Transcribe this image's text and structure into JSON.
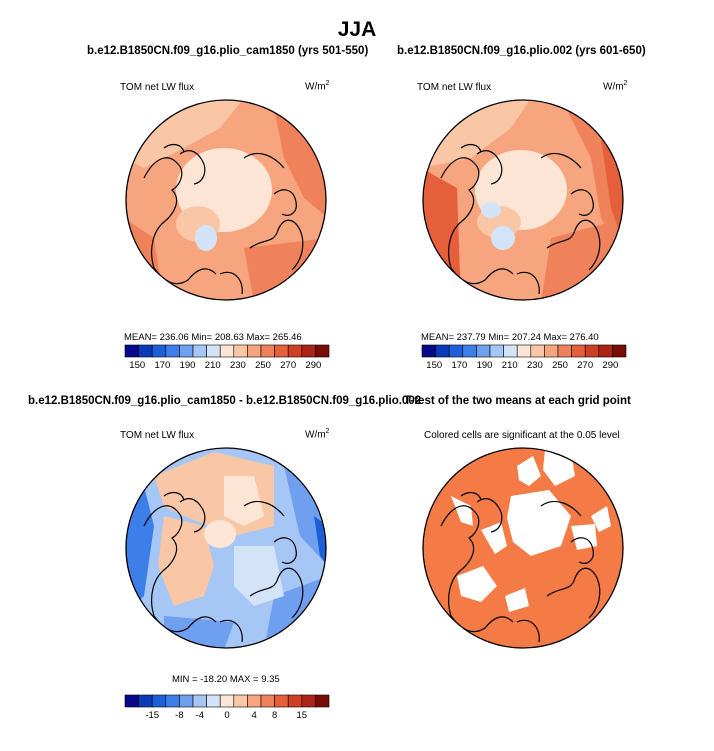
{
  "figure": {
    "season": "JJA",
    "top_left": {
      "title": "b.e12.B1850CN.f09_g16.plio_cam1850 (yrs 501-550)",
      "field": "TOM net LW flux",
      "units": "W/m",
      "units_sup": "2",
      "stats": "MEAN= 236.06   Min= 208.63   Max= 265.46"
    },
    "top_right": {
      "title": "b.e12.B1850CN.f09_g16.plio.002 (yrs 601-650)",
      "field": "TOM net LW flux",
      "units": "W/m",
      "units_sup": "2",
      "stats": "MEAN= 237.79   Min= 207.24   Max= 276.40"
    },
    "bottom_left": {
      "title": "b.e12.B1850CN.f09_g16.plio_cam1850 - b.e12.B1850CN.f09_g16.plio.002",
      "field": "TOM net LW flux",
      "units": "W/m",
      "units_sup": "2",
      "stats": "MIN = -18.20  MAX =    9.35"
    },
    "bottom_right": {
      "title": "T-test of the two means at each grid point",
      "subtitle": "Colored cells are significant at the 0.05 level"
    },
    "colorbar_top": {
      "labels": [
        "150",
        "170",
        "190",
        "210",
        "230",
        "250",
        "270",
        "290"
      ],
      "colors": [
        "#08088a",
        "#0a3ab8",
        "#1d5fd8",
        "#3d7fe8",
        "#6fa0f0",
        "#a6c6f5",
        "#d3e4f8",
        "#fde5d6",
        "#f9c7a6",
        "#f6a57e",
        "#ef825a",
        "#e55f3a",
        "#cf3f24",
        "#ab2416",
        "#7a0c06"
      ]
    },
    "colorbar_bottom": {
      "labels": [
        "-15",
        "-8",
        "-4",
        "0",
        "4",
        "8",
        "15"
      ],
      "colors": [
        "#08088a",
        "#0a3ab8",
        "#1d5fd8",
        "#3d7fe8",
        "#6fa0f0",
        "#a6c6f5",
        "#d3e4f8",
        "#fde5d6",
        "#f9c7a6",
        "#f6a57e",
        "#ef825a",
        "#e55f3a",
        "#cf3f24",
        "#ab2416",
        "#7a0c06"
      ]
    }
  }
}
